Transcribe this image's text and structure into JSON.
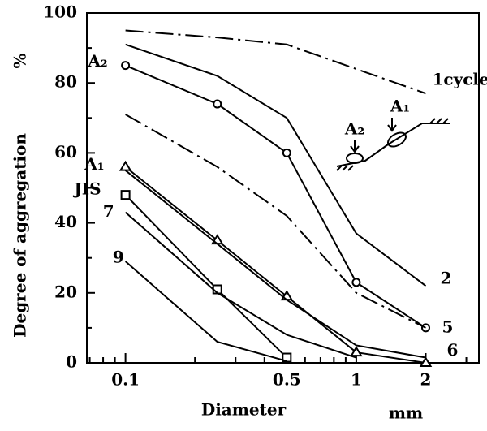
{
  "chart_data": {
    "type": "line",
    "xlabel": "Diameter",
    "xunit": "mm",
    "ylabel": "Degree of aggregation",
    "yunit": "%",
    "log_x": true,
    "xlim": [
      0.068,
      3.4
    ],
    "ylim": [
      0,
      100
    ],
    "xticks": [
      0.1,
      0.5,
      1,
      2
    ],
    "xminorticks": [
      0.07,
      0.08,
      0.09,
      0.2,
      0.3,
      0.4,
      0.6,
      0.7,
      0.8,
      0.9,
      3
    ],
    "yticks": [
      0,
      20,
      40,
      60,
      80,
      100
    ],
    "yminorticks": [
      10,
      30,
      50,
      70,
      90
    ],
    "x": [
      0.1,
      0.25,
      0.5,
      1,
      2
    ],
    "series": [
      {
        "name": "1cycle",
        "color": "#000000",
        "dash": "dashdot",
        "marker": null,
        "values": [
          95,
          93,
          91,
          84,
          77
        ]
      },
      {
        "name": "2",
        "color": "#000000",
        "dash": "solid",
        "marker": null,
        "values": [
          91,
          82,
          70,
          37,
          22
        ]
      },
      {
        "name": "A₂",
        "color": "#000000",
        "dash": "solid",
        "marker": "circle",
        "values": [
          85,
          74,
          60,
          23,
          10
        ]
      },
      {
        "name": "5",
        "color": "#000000",
        "dash": "dashdot",
        "marker": null,
        "values": [
          71,
          56,
          42,
          20,
          10
        ]
      },
      {
        "name": "A₁",
        "color": "#000000",
        "dash": "solid",
        "marker": "triangle",
        "values": [
          56,
          35,
          19,
          3,
          0
        ]
      },
      {
        "name": "6",
        "color": "#000000",
        "dash": "solid",
        "marker": null,
        "values": [
          55,
          34,
          18,
          5,
          1.5
        ]
      },
      {
        "name": "JIS",
        "color": "#000000",
        "dash": "solid",
        "marker": "square",
        "values": [
          48,
          21,
          1.5,
          null,
          null
        ]
      },
      {
        "name": "7",
        "color": "#000000",
        "dash": "solid",
        "marker": null,
        "values": [
          43,
          20,
          8,
          1.5,
          null
        ]
      },
      {
        "name": "9",
        "color": "#000000",
        "dash": "solid",
        "marker": null,
        "values": [
          29,
          6,
          0.5,
          null,
          null
        ]
      }
    ],
    "annotations": [
      "A₁",
      "A₂"
    ]
  }
}
